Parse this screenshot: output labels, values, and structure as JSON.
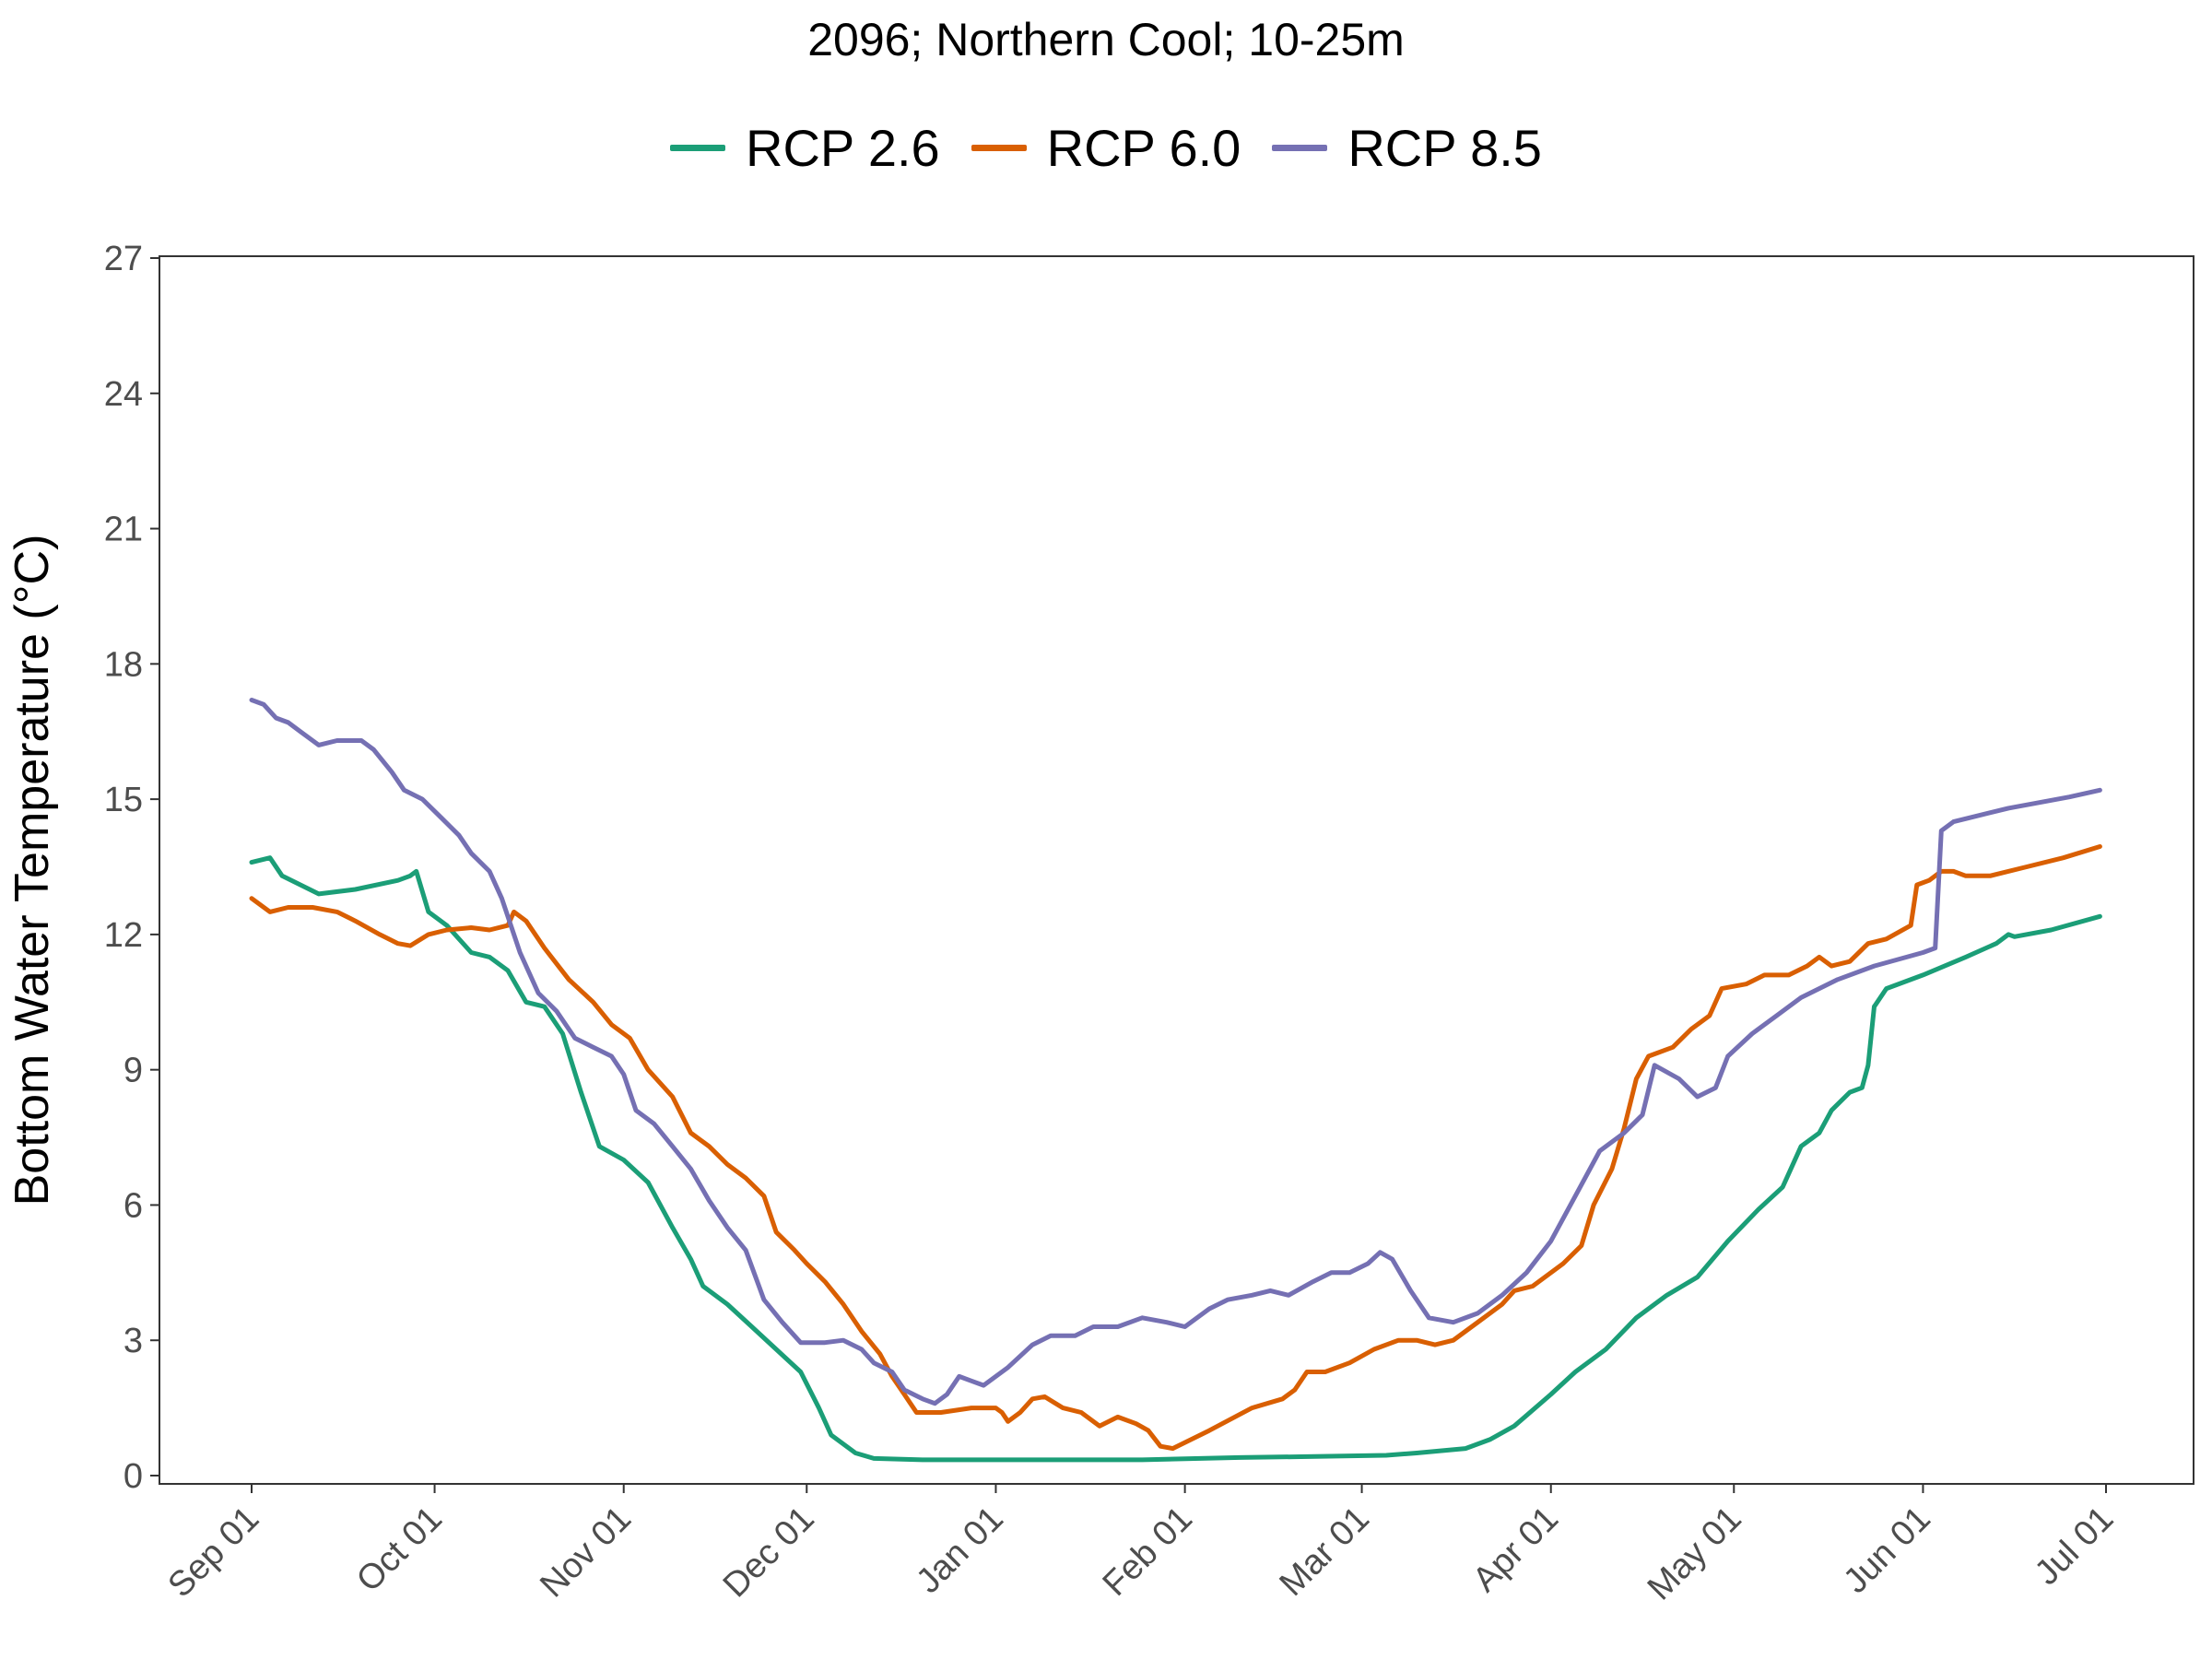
{
  "chart_data": {
    "type": "line",
    "title": "2096;  Northern Cool;  10-25m",
    "xlabel": "",
    "ylabel": "Bottom Water Temperature (°C)",
    "ylim": [
      0,
      27
    ],
    "yticks": [
      0,
      3,
      6,
      9,
      12,
      15,
      18,
      21,
      24,
      27
    ],
    "xlim": [
      "2095-09-01",
      "2096-07-01"
    ],
    "xticks": [
      {
        "date": "2095-09-01",
        "label": "Sep 01"
      },
      {
        "date": "2095-10-01",
        "label": "Oct 01"
      },
      {
        "date": "2095-11-01",
        "label": "Nov 01"
      },
      {
        "date": "2095-12-01",
        "label": "Dec 01"
      },
      {
        "date": "2096-01-01",
        "label": "Jan 01"
      },
      {
        "date": "2096-02-01",
        "label": "Feb 01"
      },
      {
        "date": "2096-03-01",
        "label": "Mar 01"
      },
      {
        "date": "2096-04-01",
        "label": "Apr 01"
      },
      {
        "date": "2096-05-01",
        "label": "May 01"
      },
      {
        "date": "2096-06-01",
        "label": "Jun 01"
      },
      {
        "date": "2096-07-01",
        "label": "Jul 01"
      }
    ],
    "grid": false,
    "legend_position": "top",
    "series": [
      {
        "name": "RCP 2.6",
        "color": "#1b9e77",
        "points": [
          [
            "2095-09-01",
            13.6
          ],
          [
            "2095-09-04",
            13.7
          ],
          [
            "2095-09-06",
            13.3
          ],
          [
            "2095-09-12",
            12.9
          ],
          [
            "2095-09-18",
            13.0
          ],
          [
            "2095-09-25",
            13.2
          ],
          [
            "2095-09-27",
            13.3
          ],
          [
            "2095-09-28",
            13.4
          ],
          [
            "2095-09-30",
            12.5
          ],
          [
            "2095-10-03",
            12.2
          ],
          [
            "2095-10-07",
            11.6
          ],
          [
            "2095-10-10",
            11.5
          ],
          [
            "2095-10-13",
            11.2
          ],
          [
            "2095-10-16",
            10.5
          ],
          [
            "2095-10-19",
            10.4
          ],
          [
            "2095-10-22",
            9.8
          ],
          [
            "2095-10-25",
            8.5
          ],
          [
            "2095-10-28",
            7.3
          ],
          [
            "2095-11-01",
            7.0
          ],
          [
            "2095-11-05",
            6.5
          ],
          [
            "2095-11-09",
            5.5
          ],
          [
            "2095-11-12",
            4.8
          ],
          [
            "2095-11-14",
            4.2
          ],
          [
            "2095-11-18",
            3.8
          ],
          [
            "2095-11-22",
            3.3
          ],
          [
            "2095-11-26",
            2.8
          ],
          [
            "2095-11-30",
            2.3
          ],
          [
            "2095-12-03",
            1.5
          ],
          [
            "2095-12-05",
            0.9
          ],
          [
            "2095-12-09",
            0.5
          ],
          [
            "2095-12-12",
            0.38
          ],
          [
            "2095-12-20",
            0.35
          ],
          [
            "2096-01-01",
            0.35
          ],
          [
            "2096-01-25",
            0.35
          ],
          [
            "2096-02-10",
            0.4
          ],
          [
            "2096-02-20",
            0.42
          ],
          [
            "2096-03-05",
            0.45
          ],
          [
            "2096-03-10",
            0.5
          ],
          [
            "2096-03-18",
            0.6
          ],
          [
            "2096-03-22",
            0.8
          ],
          [
            "2096-03-26",
            1.1
          ],
          [
            "2096-04-01",
            1.8
          ],
          [
            "2096-04-05",
            2.3
          ],
          [
            "2096-04-10",
            2.8
          ],
          [
            "2096-04-15",
            3.5
          ],
          [
            "2096-04-20",
            4.0
          ],
          [
            "2096-04-25",
            4.4
          ],
          [
            "2096-04-30",
            5.2
          ],
          [
            "2096-05-05",
            5.9
          ],
          [
            "2096-05-09",
            6.4
          ],
          [
            "2096-05-12",
            7.3
          ],
          [
            "2096-05-15",
            7.6
          ],
          [
            "2096-05-17",
            8.1
          ],
          [
            "2096-05-20",
            8.5
          ],
          [
            "2096-05-22",
            8.6
          ],
          [
            "2096-05-23",
            9.1
          ],
          [
            "2096-05-24",
            10.4
          ],
          [
            "2096-05-26",
            10.8
          ],
          [
            "2096-06-01",
            11.1
          ],
          [
            "2096-06-08",
            11.5
          ],
          [
            "2096-06-13",
            11.8
          ],
          [
            "2096-06-15",
            12.0
          ],
          [
            "2096-06-16",
            11.95
          ],
          [
            "2096-06-22",
            12.1
          ],
          [
            "2096-06-30",
            12.4
          ]
        ]
      },
      {
        "name": "RCP 6.0",
        "color": "#d95f02",
        "points": [
          [
            "2095-09-01",
            12.8
          ],
          [
            "2095-09-04",
            12.5
          ],
          [
            "2095-09-07",
            12.6
          ],
          [
            "2095-09-11",
            12.6
          ],
          [
            "2095-09-15",
            12.5
          ],
          [
            "2095-09-18",
            12.3
          ],
          [
            "2095-09-22",
            12.0
          ],
          [
            "2095-09-25",
            11.8
          ],
          [
            "2095-09-27",
            11.75
          ],
          [
            "2095-09-30",
            12.0
          ],
          [
            "2095-10-03",
            12.1
          ],
          [
            "2095-10-07",
            12.15
          ],
          [
            "2095-10-10",
            12.1
          ],
          [
            "2095-10-13",
            12.2
          ],
          [
            "2095-10-14",
            12.5
          ],
          [
            "2095-10-16",
            12.3
          ],
          [
            "2095-10-19",
            11.7
          ],
          [
            "2095-10-23",
            11.0
          ],
          [
            "2095-10-27",
            10.5
          ],
          [
            "2095-10-30",
            10.0
          ],
          [
            "2095-11-02",
            9.7
          ],
          [
            "2095-11-05",
            9.0
          ],
          [
            "2095-11-09",
            8.4
          ],
          [
            "2095-11-12",
            7.6
          ],
          [
            "2095-11-15",
            7.3
          ],
          [
            "2095-11-18",
            6.9
          ],
          [
            "2095-11-21",
            6.6
          ],
          [
            "2095-11-24",
            6.2
          ],
          [
            "2095-11-26",
            5.4
          ],
          [
            "2095-11-29",
            5.0
          ],
          [
            "2095-12-01",
            4.7
          ],
          [
            "2095-12-04",
            4.3
          ],
          [
            "2095-12-07",
            3.8
          ],
          [
            "2095-12-10",
            3.2
          ],
          [
            "2095-12-13",
            2.7
          ],
          [
            "2095-12-15",
            2.2
          ],
          [
            "2095-12-17",
            1.8
          ],
          [
            "2095-12-19",
            1.4
          ],
          [
            "2095-12-23",
            1.4
          ],
          [
            "2095-12-28",
            1.5
          ],
          [
            "2096-01-01",
            1.5
          ],
          [
            "2096-01-02",
            1.4
          ],
          [
            "2096-01-03",
            1.2
          ],
          [
            "2096-01-05",
            1.4
          ],
          [
            "2096-01-07",
            1.7
          ],
          [
            "2096-01-09",
            1.75
          ],
          [
            "2096-01-12",
            1.5
          ],
          [
            "2096-01-15",
            1.4
          ],
          [
            "2096-01-18",
            1.1
          ],
          [
            "2096-01-21",
            1.3
          ],
          [
            "2096-01-24",
            1.15
          ],
          [
            "2096-01-26",
            1.0
          ],
          [
            "2096-01-28",
            0.65
          ],
          [
            "2096-01-30",
            0.6
          ],
          [
            "2096-02-05",
            1.0
          ],
          [
            "2096-02-12",
            1.5
          ],
          [
            "2096-02-17",
            1.7
          ],
          [
            "2096-02-19",
            1.9
          ],
          [
            "2096-02-21",
            2.3
          ],
          [
            "2096-02-24",
            2.3
          ],
          [
            "2096-02-28",
            2.5
          ],
          [
            "2096-03-03",
            2.8
          ],
          [
            "2096-03-07",
            3.0
          ],
          [
            "2096-03-10",
            3.0
          ],
          [
            "2096-03-13",
            2.9
          ],
          [
            "2096-03-16",
            3.0
          ],
          [
            "2096-03-20",
            3.4
          ],
          [
            "2096-03-24",
            3.8
          ],
          [
            "2096-03-26",
            4.1
          ],
          [
            "2096-03-29",
            4.2
          ],
          [
            "2096-04-03",
            4.7
          ],
          [
            "2096-04-06",
            5.1
          ],
          [
            "2096-04-08",
            6.0
          ],
          [
            "2096-04-11",
            6.8
          ],
          [
            "2096-04-13",
            7.7
          ],
          [
            "2096-04-15",
            8.8
          ],
          [
            "2096-04-17",
            9.3
          ],
          [
            "2096-04-21",
            9.5
          ],
          [
            "2096-04-24",
            9.9
          ],
          [
            "2096-04-27",
            10.2
          ],
          [
            "2096-04-29",
            10.8
          ],
          [
            "2096-05-03",
            10.9
          ],
          [
            "2096-05-06",
            11.1
          ],
          [
            "2096-05-10",
            11.1
          ],
          [
            "2096-05-13",
            11.3
          ],
          [
            "2096-05-15",
            11.5
          ],
          [
            "2096-05-17",
            11.3
          ],
          [
            "2096-05-20",
            11.4
          ],
          [
            "2096-05-23",
            11.8
          ],
          [
            "2096-05-26",
            11.9
          ],
          [
            "2096-05-30",
            12.2
          ],
          [
            "2096-05-31",
            13.1
          ],
          [
            "2096-06-02",
            13.2
          ],
          [
            "2096-06-04",
            13.4
          ],
          [
            "2096-06-06",
            13.4
          ],
          [
            "2096-06-08",
            13.3
          ],
          [
            "2096-06-12",
            13.3
          ],
          [
            "2096-06-18",
            13.5
          ],
          [
            "2096-06-24",
            13.7
          ],
          [
            "2096-06-30",
            13.95
          ]
        ]
      },
      {
        "name": "RCP 8.5",
        "color": "#7570b3",
        "points": [
          [
            "2095-09-01",
            17.2
          ],
          [
            "2095-09-03",
            17.1
          ],
          [
            "2095-09-05",
            16.8
          ],
          [
            "2095-09-07",
            16.7
          ],
          [
            "2095-09-09",
            16.5
          ],
          [
            "2095-09-12",
            16.2
          ],
          [
            "2095-09-15",
            16.3
          ],
          [
            "2095-09-19",
            16.3
          ],
          [
            "2095-09-21",
            16.1
          ],
          [
            "2095-09-24",
            15.6
          ],
          [
            "2095-09-26",
            15.2
          ],
          [
            "2095-09-29",
            15.0
          ],
          [
            "2095-10-02",
            14.6
          ],
          [
            "2095-10-05",
            14.2
          ],
          [
            "2095-10-07",
            13.8
          ],
          [
            "2095-10-10",
            13.4
          ],
          [
            "2095-10-12",
            12.8
          ],
          [
            "2095-10-15",
            11.6
          ],
          [
            "2095-10-18",
            10.7
          ],
          [
            "2095-10-21",
            10.3
          ],
          [
            "2095-10-24",
            9.7
          ],
          [
            "2095-10-27",
            9.5
          ],
          [
            "2095-10-30",
            9.3
          ],
          [
            "2095-11-01",
            8.9
          ],
          [
            "2095-11-03",
            8.1
          ],
          [
            "2095-11-06",
            7.8
          ],
          [
            "2095-11-09",
            7.3
          ],
          [
            "2095-11-12",
            6.8
          ],
          [
            "2095-11-15",
            6.1
          ],
          [
            "2095-11-18",
            5.5
          ],
          [
            "2095-11-21",
            5.0
          ],
          [
            "2095-11-24",
            3.9
          ],
          [
            "2095-11-27",
            3.4
          ],
          [
            "2095-11-30",
            2.95
          ],
          [
            "2095-12-04",
            2.95
          ],
          [
            "2095-12-07",
            3.0
          ],
          [
            "2095-12-10",
            2.8
          ],
          [
            "2095-12-12",
            2.5
          ],
          [
            "2095-12-15",
            2.3
          ],
          [
            "2095-12-17",
            1.9
          ],
          [
            "2095-12-20",
            1.7
          ],
          [
            "2095-12-22",
            1.6
          ],
          [
            "2095-12-24",
            1.8
          ],
          [
            "2095-12-26",
            2.2
          ],
          [
            "2095-12-28",
            2.1
          ],
          [
            "2095-12-30",
            2.0
          ],
          [
            "2096-01-03",
            2.4
          ],
          [
            "2096-01-07",
            2.9
          ],
          [
            "2096-01-10",
            3.1
          ],
          [
            "2096-01-14",
            3.1
          ],
          [
            "2096-01-17",
            3.3
          ],
          [
            "2096-01-21",
            3.3
          ],
          [
            "2096-01-25",
            3.5
          ],
          [
            "2096-01-29",
            3.4
          ],
          [
            "2096-02-01",
            3.3
          ],
          [
            "2096-02-05",
            3.7
          ],
          [
            "2096-02-08",
            3.9
          ],
          [
            "2096-02-12",
            4.0
          ],
          [
            "2096-02-15",
            4.1
          ],
          [
            "2096-02-18",
            4.0
          ],
          [
            "2096-02-22",
            4.3
          ],
          [
            "2096-02-25",
            4.5
          ],
          [
            "2096-02-28",
            4.5
          ],
          [
            "2096-03-02",
            4.7
          ],
          [
            "2096-03-04",
            4.95
          ],
          [
            "2096-03-06",
            4.8
          ],
          [
            "2096-03-09",
            4.1
          ],
          [
            "2096-03-12",
            3.5
          ],
          [
            "2096-03-16",
            3.4
          ],
          [
            "2096-03-20",
            3.6
          ],
          [
            "2096-03-24",
            4.0
          ],
          [
            "2096-03-28",
            4.5
          ],
          [
            "2096-04-01",
            5.2
          ],
          [
            "2096-04-05",
            6.2
          ],
          [
            "2096-04-09",
            7.2
          ],
          [
            "2096-04-13",
            7.6
          ],
          [
            "2096-04-16",
            8.0
          ],
          [
            "2096-04-18",
            9.1
          ],
          [
            "2096-04-22",
            8.8
          ],
          [
            "2096-04-25",
            8.4
          ],
          [
            "2096-04-28",
            8.6
          ],
          [
            "2096-04-30",
            9.3
          ],
          [
            "2096-05-04",
            9.8
          ],
          [
            "2096-05-08",
            10.2
          ],
          [
            "2096-05-12",
            10.6
          ],
          [
            "2096-05-18",
            11.0
          ],
          [
            "2096-05-24",
            11.3
          ],
          [
            "2096-06-01",
            11.6
          ],
          [
            "2096-06-03",
            11.7
          ],
          [
            "2096-06-04",
            14.3
          ],
          [
            "2096-06-06",
            14.5
          ],
          [
            "2096-06-15",
            14.8
          ],
          [
            "2096-06-25",
            15.05
          ],
          [
            "2096-06-30",
            15.2
          ]
        ]
      }
    ]
  }
}
